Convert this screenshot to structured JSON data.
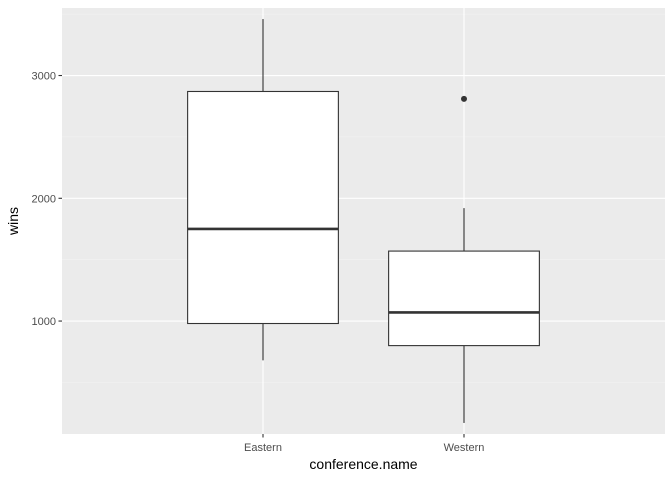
{
  "chart_data": {
    "type": "boxplot",
    "xlabel": "conference.name",
    "ylabel": "wins",
    "categories": [
      "Eastern",
      "Western"
    ],
    "y_ticks": [
      1000,
      2000,
      3000
    ],
    "y_tick_labels": [
      "1000",
      "2000",
      "3000"
    ],
    "ylim": [
      80,
      3550
    ],
    "grid": true,
    "boxes": [
      {
        "category": "Eastern",
        "whisker_low": 680,
        "q1": 980,
        "median": 1750,
        "q3": 2870,
        "whisker_high": 3460,
        "outliers": []
      },
      {
        "category": "Western",
        "whisker_low": 170,
        "q1": 800,
        "median": 1070,
        "q3": 1570,
        "whisker_high": 1920,
        "outliers": [
          2810
        ]
      }
    ]
  },
  "colors": {
    "panel_background": "#ebebeb",
    "grid_major": "#ffffff",
    "grid_minor": "#f2f2f2",
    "box_fill": "#ffffff",
    "box_line": "#333333",
    "tick_text": "#4d4d4d",
    "title_text": "#000000"
  }
}
